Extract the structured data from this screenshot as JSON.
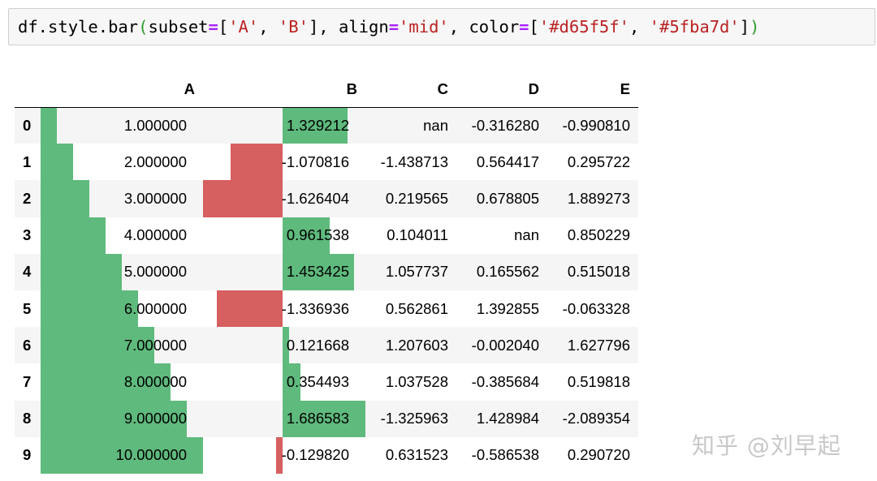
{
  "code": {
    "tokens": [
      {
        "t": "df.style.bar",
        "k": "plain"
      },
      {
        "t": "(",
        "k": "paren"
      },
      {
        "t": "subset",
        "k": "plain"
      },
      {
        "t": "=",
        "k": "op"
      },
      {
        "t": "[",
        "k": "plain"
      },
      {
        "t": "'A'",
        "k": "str"
      },
      {
        "t": ", ",
        "k": "plain"
      },
      {
        "t": "'B'",
        "k": "str"
      },
      {
        "t": "], align",
        "k": "plain"
      },
      {
        "t": "=",
        "k": "op"
      },
      {
        "t": "'mid'",
        "k": "str"
      },
      {
        "t": ", color",
        "k": "plain"
      },
      {
        "t": "=",
        "k": "op"
      },
      {
        "t": "[",
        "k": "plain"
      },
      {
        "t": "'#d65f5f'",
        "k": "str"
      },
      {
        "t": ", ",
        "k": "plain"
      },
      {
        "t": "'#5fba7d'",
        "k": "str"
      },
      {
        "t": "]",
        "k": "plain"
      },
      {
        "t": ")",
        "k": "paren"
      }
    ]
  },
  "colors": {
    "negative": "#d65f5f",
    "positive": "#5fba7d"
  },
  "table": {
    "columns": [
      "A",
      "B",
      "C",
      "D",
      "E"
    ],
    "bar_columns": [
      "A",
      "B"
    ],
    "rows": [
      {
        "index": "0",
        "A": 1.0,
        "B": 1.329212,
        "C": "nan",
        "D": -0.31628,
        "E": -0.99081
      },
      {
        "index": "1",
        "A": 2.0,
        "B": -1.070816,
        "C": -1.438713,
        "D": 0.564417,
        "E": 0.295722
      },
      {
        "index": "2",
        "A": 3.0,
        "B": -1.626404,
        "C": 0.219565,
        "D": 0.678805,
        "E": 1.889273
      },
      {
        "index": "3",
        "A": 4.0,
        "B": 0.961538,
        "C": 0.104011,
        "D": "nan",
        "E": 0.850229
      },
      {
        "index": "4",
        "A": 5.0,
        "B": 1.453425,
        "C": 1.057737,
        "D": 0.165562,
        "E": 0.515018
      },
      {
        "index": "5",
        "A": 6.0,
        "B": -1.336936,
        "C": 0.562861,
        "D": 1.392855,
        "E": -0.063328
      },
      {
        "index": "6",
        "A": 7.0,
        "B": 0.121668,
        "C": 1.207603,
        "D": -0.00204,
        "E": 1.627796
      },
      {
        "index": "7",
        "A": 8.0,
        "B": 0.354493,
        "C": 1.037528,
        "D": -0.385684,
        "E": 0.519818
      },
      {
        "index": "8",
        "A": 9.0,
        "B": 1.686583,
        "C": -1.325963,
        "D": 1.428984,
        "E": -2.089354
      },
      {
        "index": "9",
        "A": 10.0,
        "B": -0.12982,
        "C": 0.631523,
        "D": -0.586538,
        "E": 0.29072
      }
    ]
  },
  "watermark": "知乎 @刘早起"
}
